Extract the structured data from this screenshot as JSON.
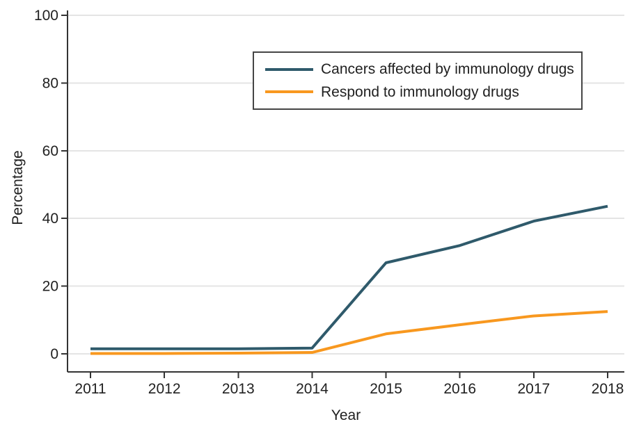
{
  "figure": {
    "background": "#ffffff",
    "text_color": "#1f1f1f"
  },
  "chart_data": {
    "type": "line",
    "title": "",
    "xlabel": "Year",
    "ylabel": "Percentage",
    "x": [
      2011,
      2012,
      2013,
      2014,
      2015,
      2016,
      2017,
      2018
    ],
    "series": [
      {
        "name": "Cancers affected by immunology drugs",
        "color": "#2F5A6B",
        "values": [
          1.5,
          1.5,
          1.5,
          1.7,
          26.9,
          32.0,
          39.2,
          43.6
        ]
      },
      {
        "name": "Respond to immunology drugs",
        "color": "#F8981F",
        "values": [
          0.1,
          0.1,
          0.2,
          0.4,
          5.9,
          8.6,
          11.2,
          12.5
        ]
      }
    ],
    "ylim": [
      0,
      100
    ],
    "yticks": [
      0,
      20,
      40,
      60,
      80,
      100
    ],
    "grid": true,
    "grid_color": "#E4E4E4",
    "axis_color": "#333333",
    "legend_position": "top-center-inside",
    "legend_border_color": "#454545"
  }
}
